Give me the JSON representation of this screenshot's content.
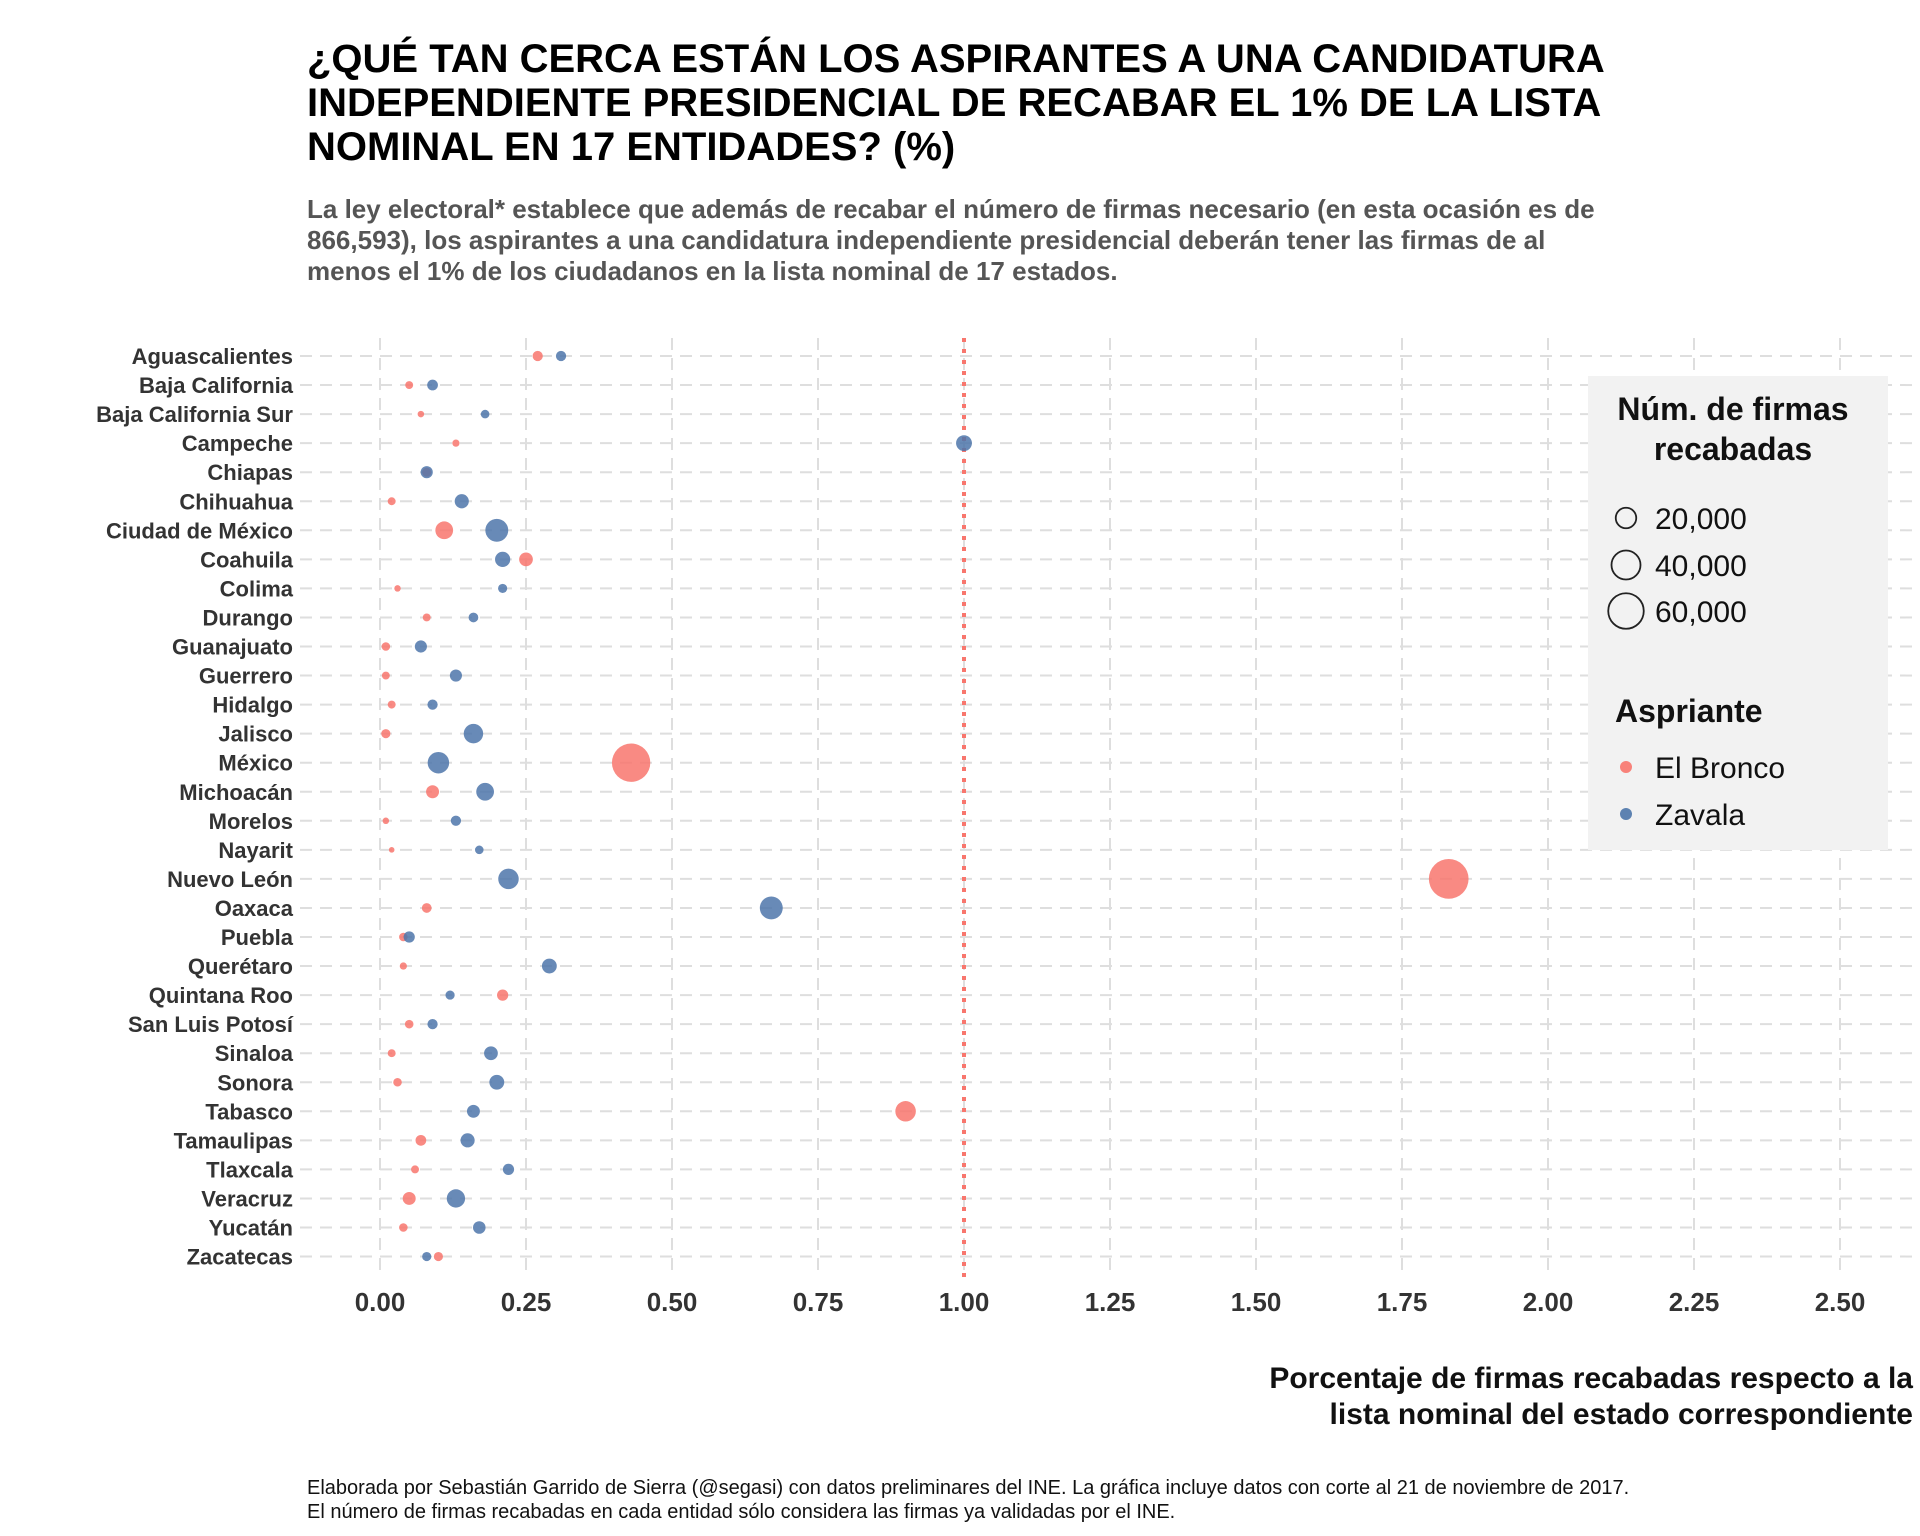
{
  "chart_data": {
    "type": "scatter",
    "title_lines": [
      "¿QUÉ TAN CERCA ESTÁN LOS ASPIRANTES A UNA CANDIDATURA",
      "INDEPENDIENTE PRESIDENCIAL DE RECABAR EL 1% DE LA LISTA",
      "NOMINAL EN 17 ENTIDADES? (%)"
    ],
    "subtitle_lines": [
      "La ley electoral* establece que además de recabar el número de firmas necesario (en esta ocasión es de",
      "866,593), los aspirantes a una candidatura independiente presidencial deberán tener las firmas de al",
      "menos el 1% de los ciudadanos en la lista nominal de 17 estados."
    ],
    "xlabel_lines": [
      "Porcentaje de firmas recabadas respecto a la",
      "lista nominal del estado correspondiente"
    ],
    "caption_lines": [
      "Elaborada por Sebastián Garrido de Sierra (@segasi) con datos preliminares del INE. La gráfica incluye datos con corte al 21 de noviembre de 2017.",
      "El número de firmas recabadas en cada entidad sólo considera las firmas ya validadas por el INE."
    ],
    "xlim": [
      -0.12,
      2.62
    ],
    "x_ticks": [
      0,
      0.25,
      0.5,
      0.75,
      1.0,
      1.25,
      1.5,
      1.75,
      2.0,
      2.25,
      2.5
    ],
    "x_tick_labels": [
      "0.00",
      "0.25",
      "0.50",
      "0.75",
      "1.00",
      "1.25",
      "1.50",
      "1.75",
      "2.00",
      "2.25",
      "2.50"
    ],
    "reference_line": {
      "x": 1.0,
      "color": "#f8766d",
      "style": "dotted"
    },
    "grid": true,
    "legend_placement": "right",
    "categories": [
      "Aguascalientes",
      "Baja California",
      "Baja California Sur",
      "Campeche",
      "Chiapas",
      "Chihuahua",
      "Ciudad de México",
      "Coahuila",
      "Colima",
      "Durango",
      "Guanajuato",
      "Guerrero",
      "Hidalgo",
      "Jalisco",
      "México",
      "Michoacán",
      "Morelos",
      "Nayarit",
      "Nuevo León",
      "Oaxaca",
      "Puebla",
      "Querétaro",
      "Quintana Roo",
      "San Luis Potosí",
      "Sinaloa",
      "Sonora",
      "Tabasco",
      "Tamaulipas",
      "Tlaxcala",
      "Veracruz",
      "Yucatán",
      "Zacatecas"
    ],
    "series": [
      {
        "name": "El Bronco",
        "color": "#f8766d",
        "x": [
          0.27,
          0.05,
          0.07,
          0.13,
          0.08,
          0.02,
          0.11,
          0.25,
          0.03,
          0.08,
          0.01,
          0.01,
          0.02,
          0.01,
          0.43,
          0.09,
          0.01,
          0.02,
          1.83,
          0.08,
          0.04,
          0.04,
          0.21,
          0.05,
          0.02,
          0.03,
          0.9,
          0.07,
          0.06,
          0.05,
          0.04,
          0.1
        ],
        "size": [
          5000,
          3000,
          2000,
          2500,
          4000,
          3000,
          15000,
          9000,
          2000,
          3000,
          3500,
          3000,
          3000,
          4000,
          70000,
          8000,
          2000,
          1500,
          75000,
          4500,
          3500,
          2500,
          6000,
          3500,
          3000,
          3500,
          20000,
          5500,
          3000,
          8000,
          3500,
          4000
        ]
      },
      {
        "name": "Zavala",
        "color": "#4d76aa",
        "x": [
          0.31,
          0.09,
          0.18,
          1.0,
          0.08,
          0.14,
          0.2,
          0.21,
          0.21,
          0.16,
          0.07,
          0.13,
          0.09,
          0.16,
          0.1,
          0.18,
          0.13,
          0.17,
          0.22,
          0.67,
          0.05,
          0.29,
          0.12,
          0.09,
          0.19,
          0.2,
          0.16,
          0.15,
          0.22,
          0.13,
          0.17,
          0.08
        ],
        "size": [
          5000,
          5500,
          3500,
          12000,
          7000,
          9500,
          25000,
          11000,
          4000,
          4500,
          7000,
          7000,
          5000,
          18000,
          22000,
          15000,
          5000,
          3500,
          20000,
          25000,
          6000,
          10500,
          4000,
          5000,
          9000,
          10500,
          8000,
          9500,
          6000,
          16000,
          7500,
          4000
        ]
      }
    ],
    "size_legend": {
      "title_lines": [
        "Núm. de firmas",
        "recabadas"
      ],
      "values": [
        20000,
        40000,
        60000
      ],
      "labels": [
        "20,000",
        "40,000",
        "60,000"
      ]
    },
    "color_legend": {
      "title": "Aspriante",
      "labels": [
        "El Bronco",
        "Zavala"
      ]
    }
  }
}
